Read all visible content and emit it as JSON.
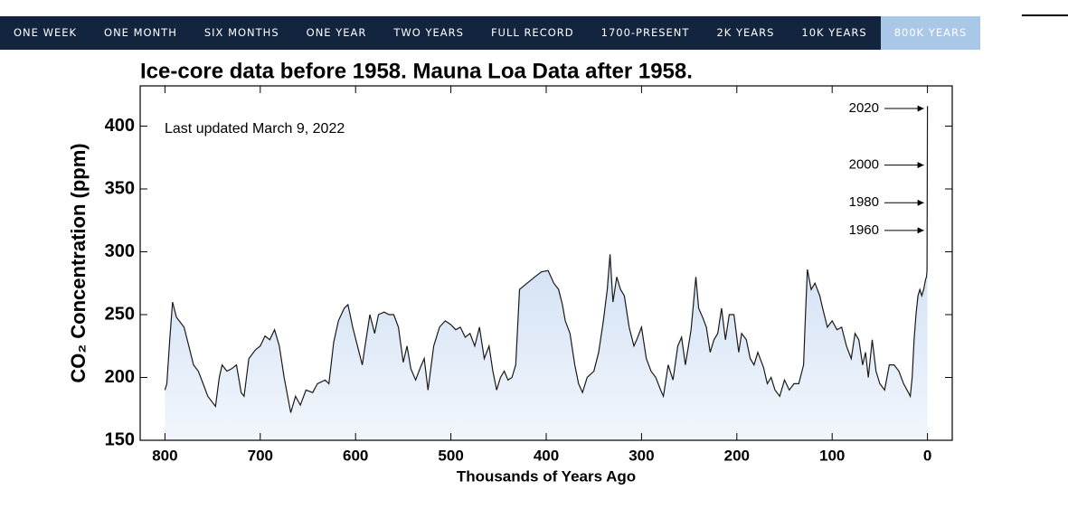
{
  "nav": {
    "items": [
      "ONE WEEK",
      "ONE MONTH",
      "SIX MONTHS",
      "ONE YEAR",
      "TWO YEARS",
      "FULL RECORD",
      "1700-PRESENT",
      "2K YEARS",
      "10K YEARS",
      "800K YEARS"
    ],
    "active": 9
  },
  "chart_data": {
    "type": "area",
    "title": "Ice-core data before 1958. Mauna Loa Data after 1958.",
    "note": "Last updated March 9, 2022",
    "x_label": "Thousands of Years Ago",
    "y_label": "CO₂ Concentration (ppm)",
    "xlim": [
      826,
      -26
    ],
    "xticks": [
      800,
      700,
      600,
      500,
      400,
      300,
      200,
      100,
      0
    ],
    "ylim": [
      150,
      432
    ],
    "yticks": [
      150,
      200,
      250,
      300,
      350,
      400
    ],
    "color": "#1a1a1a",
    "fill_top": "#b9d1ee",
    "fill_bottom": "#f2f6fc",
    "x": [
      800,
      798,
      795,
      792,
      788,
      785,
      780,
      775,
      770,
      765,
      760,
      755,
      750,
      747,
      743,
      740,
      735,
      730,
      725,
      720,
      717,
      712,
      705,
      700,
      695,
      690,
      685,
      680,
      675,
      670,
      668,
      663,
      658,
      652,
      645,
      640,
      632,
      628,
      623,
      618,
      612,
      608,
      603,
      598,
      593,
      590,
      585,
      580,
      576,
      570,
      565,
      560,
      555,
      550,
      546,
      542,
      537,
      532,
      528,
      524,
      518,
      512,
      506,
      500,
      495,
      490,
      485,
      480,
      475,
      470,
      465,
      460,
      456,
      452,
      448,
      444,
      440,
      436,
      432,
      428,
      420,
      412,
      405,
      398,
      392,
      387,
      383,
      380,
      375,
      370,
      366,
      362,
      357,
      350,
      345,
      340,
      336,
      333,
      330,
      326,
      322,
      318,
      313,
      308,
      305,
      300,
      295,
      290,
      285,
      280,
      277,
      272,
      267,
      262,
      258,
      254,
      248,
      243,
      240,
      236,
      232,
      228,
      224,
      220,
      216,
      212,
      208,
      203,
      198,
      195,
      190,
      186,
      182,
      178,
      172,
      168,
      164,
      160,
      155,
      150,
      145,
      140,
      135,
      130,
      128,
      126,
      122,
      118,
      113,
      110,
      105,
      100,
      95,
      90,
      85,
      80,
      76,
      72,
      68,
      65,
      62,
      58,
      54,
      50,
      45,
      40,
      35,
      30,
      25,
      20,
      18,
      16,
      14,
      12,
      10,
      8,
      6,
      4,
      2,
      1,
      0.5,
      0
    ],
    "values": [
      190,
      195,
      230,
      260,
      248,
      245,
      240,
      225,
      210,
      205,
      195,
      185,
      180,
      177,
      200,
      210,
      205,
      207,
      210,
      188,
      185,
      215,
      222,
      225,
      233,
      230,
      238,
      225,
      200,
      180,
      172,
      185,
      178,
      190,
      188,
      195,
      198,
      195,
      228,
      245,
      255,
      258,
      240,
      225,
      210,
      225,
      250,
      235,
      250,
      252,
      250,
      250,
      240,
      212,
      225,
      207,
      198,
      208,
      215,
      190,
      225,
      240,
      245,
      242,
      238,
      240,
      232,
      235,
      225,
      240,
      215,
      225,
      205,
      190,
      200,
      205,
      198,
      200,
      210,
      270,
      275,
      280,
      284,
      285,
      275,
      270,
      258,
      245,
      235,
      210,
      195,
      188,
      200,
      205,
      220,
      245,
      270,
      298,
      260,
      280,
      270,
      265,
      240,
      225,
      230,
      240,
      215,
      205,
      200,
      190,
      185,
      210,
      198,
      225,
      232,
      210,
      238,
      280,
      255,
      248,
      240,
      220,
      230,
      235,
      255,
      230,
      250,
      250,
      220,
      235,
      230,
      215,
      210,
      220,
      208,
      195,
      200,
      190,
      185,
      198,
      190,
      195,
      195,
      210,
      250,
      286,
      270,
      275,
      265,
      255,
      240,
      245,
      238,
      240,
      225,
      215,
      235,
      230,
      210,
      220,
      200,
      230,
      205,
      195,
      190,
      210,
      210,
      205,
      195,
      188,
      185,
      200,
      230,
      250,
      265,
      270,
      265,
      270,
      278,
      280,
      285,
      416
    ],
    "annotations": [
      {
        "text": "2020",
        "y": 414
      },
      {
        "text": "2000",
        "y": 369
      },
      {
        "text": "1980",
        "y": 339
      },
      {
        "text": "1960",
        "y": 317
      }
    ]
  }
}
